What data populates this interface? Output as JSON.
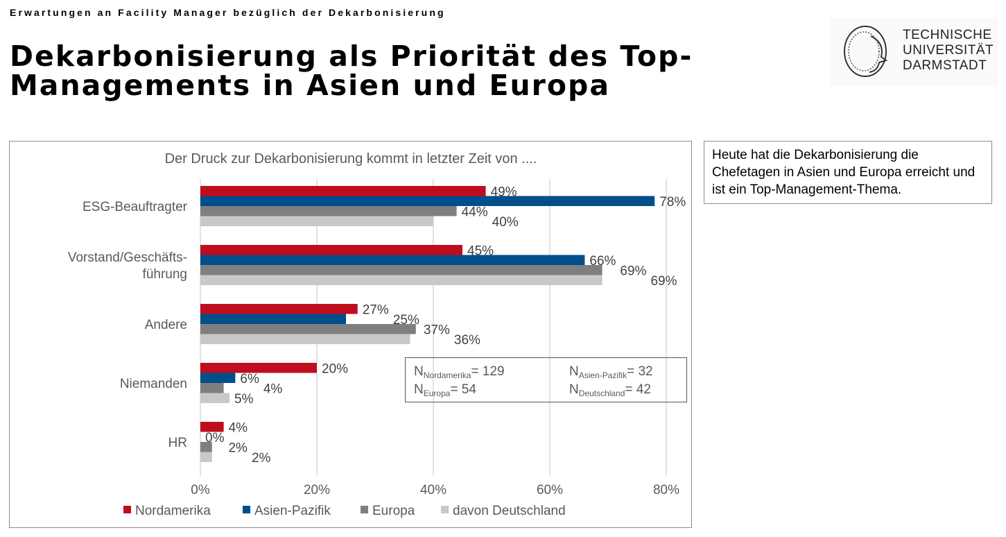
{
  "header": {
    "kicker": "Erwartungen an Facility Manager bezüglich der Dekarbonisierung",
    "title_line1": "Dekarbonisierung als Priorität des Top-",
    "title_line2": "Managements in Asien und Europa"
  },
  "logo": {
    "line1": "TECHNISCHE",
    "line2": "UNIVERSITÄT",
    "line3": "DARMSTADT"
  },
  "note": "Heute hat die Dekarbonisierung die Chefetagen in Asien und Europa erreicht und ist ein Top-Management-Thema.",
  "sample_sizes": [
    {
      "label": "N",
      "sub": "Nordamerika",
      "value": "= 129"
    },
    {
      "label": "N",
      "sub": "Asien-Pazifik",
      "value": "= 32"
    },
    {
      "label": "N",
      "sub": "Europa",
      "value": "= 54"
    },
    {
      "label": "N",
      "sub": "Deutschland",
      "value": "= 42"
    }
  ],
  "chart_data": {
    "type": "bar",
    "orientation": "horizontal",
    "title": "Der Druck zur Dekarbonisierung kommt in letzter Zeit von ....",
    "categories": [
      "ESG-Beauftragter",
      "Vorstand/Geschäfts-\nführung",
      "Andere",
      "Niemanden",
      "HR"
    ],
    "series": [
      {
        "name": "Nordamerika",
        "color": "#c00d1e",
        "values": [
          49,
          45,
          27,
          20,
          4
        ]
      },
      {
        "name": "Asien-Pazifik",
        "color": "#004e8a",
        "values": [
          78,
          66,
          25,
          6,
          0
        ]
      },
      {
        "name": "Europa",
        "color": "#7f7f7f",
        "values": [
          44,
          69,
          37,
          4,
          2
        ]
      },
      {
        "name": "davon Deutschland",
        "color": "#c8c8c8",
        "values": [
          40,
          69,
          36,
          5,
          2
        ]
      }
    ],
    "xlim": [
      0,
      80
    ],
    "xticks": [
      "0%",
      "20%",
      "40%",
      "60%",
      "80%"
    ],
    "unit": "%",
    "grid": true,
    "legend": "bottom"
  }
}
